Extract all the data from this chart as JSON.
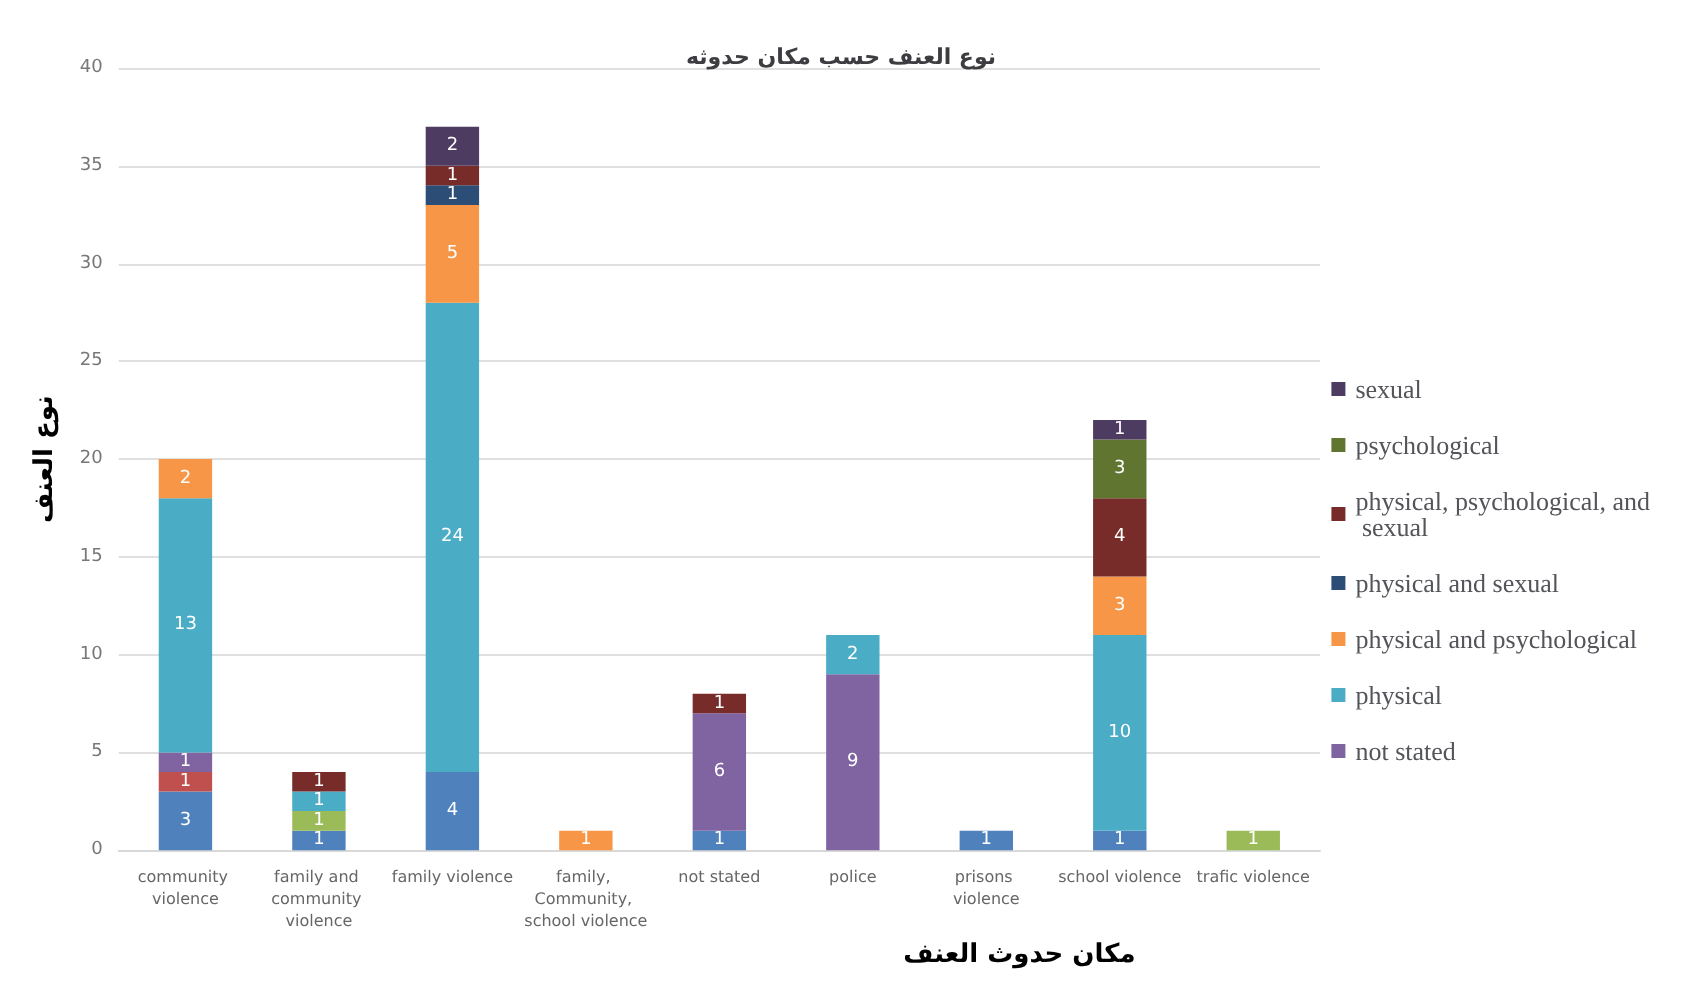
{
  "chart_data": {
    "type": "bar",
    "stacked": true,
    "title": "نوع العنف حسب مكان حدوثه",
    "xlabel": "مكان حدوث العنف",
    "ylabel": "نوع العنف",
    "categories": [
      "community violence",
      "family and community violence",
      "family violence",
      "family, Community, school violence",
      "not stated",
      "police",
      "prisons violence",
      "school violence",
      "trafic violence"
    ],
    "series": [
      {
        "color": "#4f81bd",
        "values": [
          3,
          1,
          4,
          null,
          1,
          null,
          1,
          1,
          null
        ]
      },
      {
        "color": "#c0504d",
        "values": [
          1,
          null,
          null,
          null,
          null,
          null,
          null,
          null,
          null
        ]
      },
      {
        "color": "#9bbb59",
        "values": [
          null,
          1,
          null,
          null,
          null,
          null,
          null,
          null,
          1
        ]
      },
      {
        "name": "not stated",
        "color": "#8064a2",
        "values": [
          1,
          null,
          null,
          null,
          6,
          9,
          null,
          null,
          null
        ]
      },
      {
        "name": "physical",
        "color": "#4bacc6",
        "values": [
          13,
          1,
          24,
          null,
          null,
          2,
          null,
          10,
          null
        ]
      },
      {
        "name": "physical and psychological",
        "color": "#f79646",
        "values": [
          2,
          null,
          5,
          1,
          null,
          null,
          null,
          3,
          null
        ]
      },
      {
        "name": "physical and sexual",
        "color": "#2c4d75",
        "values": [
          null,
          null,
          1,
          null,
          null,
          null,
          null,
          null,
          null
        ]
      },
      {
        "name": "physical, psychological, and sexual",
        "color": "#772c2a",
        "values": [
          null,
          1,
          1,
          null,
          1,
          null,
          null,
          4,
          null
        ]
      },
      {
        "name": "psychological",
        "color": "#5f7530",
        "values": [
          null,
          null,
          null,
          null,
          null,
          null,
          null,
          3,
          null
        ]
      },
      {
        "name": "sexual",
        "color": "#4d3b62",
        "values": [
          null,
          null,
          2,
          null,
          null,
          null,
          null,
          1,
          null
        ]
      }
    ],
    "ylim": [
      0,
      40
    ],
    "yticks": [
      0,
      5,
      10,
      15,
      20,
      25,
      30,
      35,
      40
    ],
    "grid": "y",
    "legend": "right",
    "data_labels": true
  }
}
